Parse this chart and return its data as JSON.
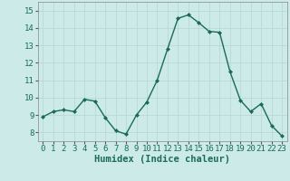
{
  "x": [
    0,
    1,
    2,
    3,
    4,
    5,
    6,
    7,
    8,
    9,
    10,
    11,
    12,
    13,
    14,
    15,
    16,
    17,
    18,
    19,
    20,
    21,
    22,
    23
  ],
  "y": [
    8.9,
    9.2,
    9.3,
    9.2,
    9.9,
    9.8,
    8.85,
    8.1,
    7.9,
    9.0,
    9.75,
    11.0,
    12.8,
    14.55,
    14.75,
    14.3,
    13.8,
    13.75,
    11.5,
    9.85,
    9.2,
    9.65,
    8.4,
    7.8
  ],
  "line_color": "#1a6b5a",
  "marker": "D",
  "marker_size": 2.0,
  "line_width": 1.0,
  "bg_color": "#cceae8",
  "grid_color": "#b8d8d5",
  "xlabel": "Humidex (Indice chaleur)",
  "xlabel_fontsize": 7.5,
  "tick_fontsize": 6.5,
  "ylim": [
    7.5,
    15.5
  ],
  "yticks": [
    8,
    9,
    10,
    11,
    12,
    13,
    14,
    15
  ],
  "xticks": [
    0,
    1,
    2,
    3,
    4,
    5,
    6,
    7,
    8,
    9,
    10,
    11,
    12,
    13,
    14,
    15,
    16,
    17,
    18,
    19,
    20,
    21,
    22,
    23
  ],
  "xlim": [
    -0.5,
    23.5
  ]
}
